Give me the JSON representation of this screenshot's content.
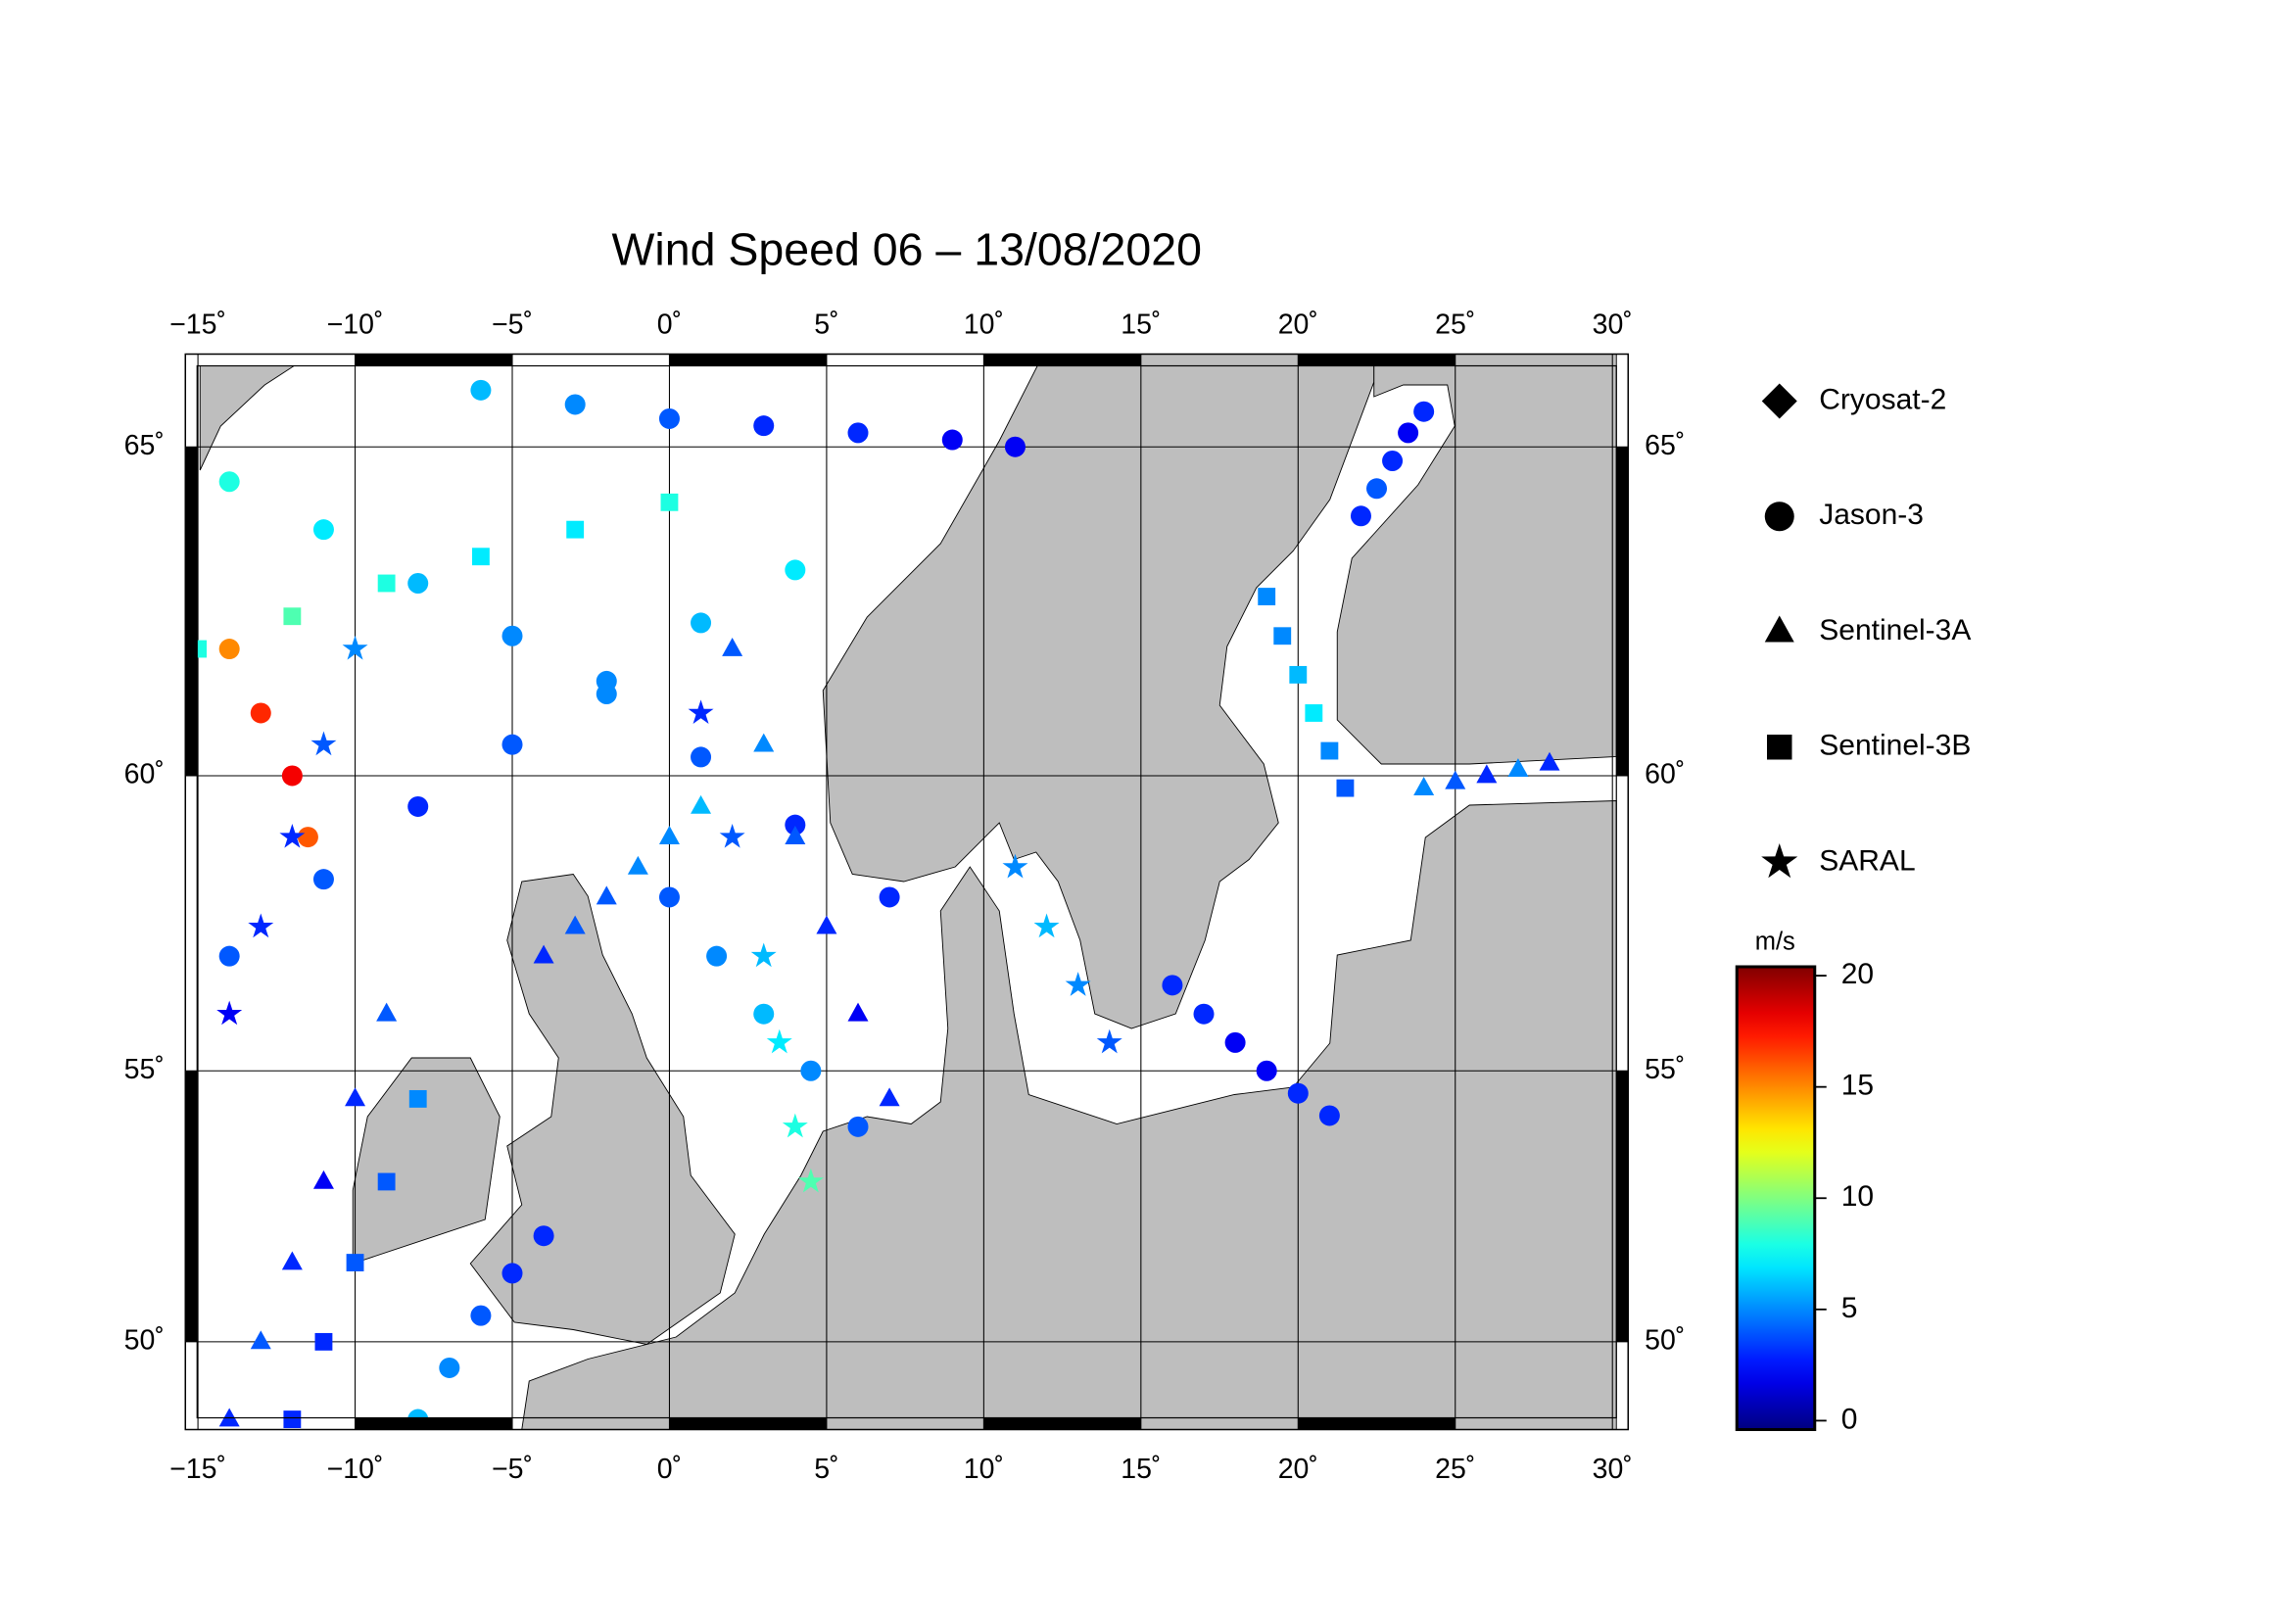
{
  "chart_data": {
    "type": "map",
    "title": "Wind Speed 06 – 13/08/2020",
    "projection": "conic",
    "xlim": [
      -15.4,
      30.5
    ],
    "ylim": [
      48.3,
      66.3
    ],
    "xticks": [
      {
        "value": -15,
        "label": "−15˚"
      },
      {
        "value": -10,
        "label": "−10˚"
      },
      {
        "value": -5,
        "label": "−5˚"
      },
      {
        "value": 0,
        "label": "0˚"
      },
      {
        "value": 5,
        "label": "5˚"
      },
      {
        "value": 10,
        "label": "10˚"
      },
      {
        "value": 15,
        "label": "15˚"
      },
      {
        "value": 20,
        "label": "20˚"
      },
      {
        "value": 25,
        "label": "25˚"
      },
      {
        "value": 30,
        "label": "30˚"
      }
    ],
    "yticks": [
      {
        "value": 50,
        "label": "50˚"
      },
      {
        "value": 55,
        "label": "55˚"
      },
      {
        "value": 60,
        "label": "60˚"
      },
      {
        "value": 65,
        "label": "65˚"
      }
    ],
    "grid": true,
    "land_color": "#bebebe",
    "colorbar": {
      "label": "m/s",
      "colormap": "jet",
      "clim": [
        -0.4,
        20.4
      ],
      "ticks": [
        0,
        5,
        10,
        15,
        20
      ]
    },
    "legend_position": "right",
    "series": [
      {
        "name": "Cryosat-2",
        "marker": "diamond",
        "tracks": []
      },
      {
        "name": "Jason-3",
        "marker": "circle",
        "tracks": [
          {
            "lon": [
              -14,
              -11,
              -8,
              -5,
              -2,
              1,
              4
            ],
            "lat": [
              57,
              58.3,
              59.5,
              60.5,
              61.5,
              62.4,
              63.2
            ],
            "values": [
              4,
              4,
              3,
              4,
              5,
              6,
              7
            ]
          },
          {
            "lon": [
              -14,
              -11,
              -8,
              -5,
              -2,
              1,
              4,
              7
            ],
            "lat": [
              64.5,
              63.8,
              63,
              62.2,
              61.3,
              60.3,
              59.2,
              58
            ],
            "values": [
              8,
              7,
              6,
              5,
              5,
              4,
              3,
              3
            ]
          },
          {
            "lon": [
              0,
              1.5,
              3,
              4.5,
              6
            ],
            "lat": [
              58,
              57,
              56,
              55,
              54
            ],
            "values": [
              4,
              5,
              6,
              5,
              4
            ]
          },
          {
            "lon": [
              16,
              17,
              18,
              19,
              20,
              21
            ],
            "lat": [
              56.5,
              56,
              55.5,
              55,
              54.6,
              54.2
            ],
            "values": [
              3,
              3,
              2,
              2,
              3,
              3
            ]
          },
          {
            "lon": [
              22,
              22.5,
              23,
              23.5,
              24
            ],
            "lat": [
              64,
              64.4,
              64.8,
              65.2,
              65.5
            ],
            "values": [
              3,
              4,
              3,
              2,
              3
            ]
          },
          {
            "lon": [
              -14,
              -13,
              -12,
              -11.5
            ],
            "lat": [
              62,
              61,
              60,
              59
            ],
            "values": [
              15,
              17,
              18,
              16
            ]
          },
          {
            "lon": [
              -8,
              -7,
              -6,
              -5,
              -4
            ],
            "lat": [
              48.5,
              49.5,
              50.5,
              51.3,
              52
            ],
            "values": [
              6,
              5,
              4,
              3,
              3
            ]
          },
          {
            "lon": [
              -6,
              -3,
              0,
              3,
              6,
              9,
              11
            ],
            "lat": [
              65.8,
              65.6,
              65.4,
              65.3,
              65.2,
              65.1,
              65
            ],
            "values": [
              6,
              5,
              4,
              3,
              3,
              2,
              2
            ]
          }
        ]
      },
      {
        "name": "Sentinel-3A",
        "marker": "triangle",
        "tracks": [
          {
            "lon": [
              -14,
              -13,
              -12,
              -11,
              -10,
              -9
            ],
            "lat": [
              48.5,
              50,
              51.5,
              53,
              54.5,
              56
            ],
            "values": [
              3,
              4,
              3,
              2,
              3,
              4
            ]
          },
          {
            "lon": [
              2,
              3,
              4,
              5,
              6,
              7
            ],
            "lat": [
              62,
              60.5,
              59,
              57.5,
              56,
              54.5
            ],
            "values": [
              4,
              5,
              4,
              3,
              2,
              3
            ]
          },
          {
            "lon": [
              24,
              25,
              26,
              27,
              28
            ],
            "lat": [
              59.8,
              59.9,
              60,
              60.1,
              60.2
            ],
            "values": [
              5,
              4,
              3,
              5,
              3
            ]
          },
          {
            "lon": [
              -4,
              -3,
              -2,
              -1,
              0,
              1
            ],
            "lat": [
              57,
              57.5,
              58,
              58.5,
              59,
              59.5
            ],
            "values": [
              3,
              4,
              4,
              5,
              5,
              6
            ]
          }
        ]
      },
      {
        "name": "Sentinel-3B",
        "marker": "square",
        "tracks": [
          {
            "lon": [
              -15,
              -12,
              -9,
              -6,
              -3,
              0
            ],
            "lat": [
              62,
              62.5,
              63,
              63.4,
              63.8,
              64.2
            ],
            "values": [
              8,
              9,
              8,
              7,
              7,
              8
            ]
          },
          {
            "lon": [
              19,
              19.5,
              20,
              20.5,
              21,
              21.5
            ],
            "lat": [
              62.8,
              62.2,
              61.6,
              61,
              60.4,
              59.8
            ],
            "values": [
              5,
              5,
              6,
              7,
              5,
              4
            ]
          },
          {
            "lon": [
              -12,
              -11,
              -10,
              -9,
              -8
            ],
            "lat": [
              48.5,
              50,
              51.5,
              53,
              54.5
            ],
            "values": [
              3,
              3,
              4,
              4,
              5
            ]
          }
        ]
      },
      {
        "name": "SARAL",
        "marker": "star",
        "tracks": [
          {
            "lon": [
              1,
              2,
              3,
              3.5,
              4,
              4.5
            ],
            "lat": [
              61,
              59,
              57,
              55.5,
              54,
              53
            ],
            "values": [
              3,
              4,
              6,
              7,
              8,
              9
            ]
          },
          {
            "lon": [
              -14,
              -13,
              -12,
              -11,
              -10
            ],
            "lat": [
              56,
              57.5,
              59,
              60.5,
              62
            ],
            "values": [
              2,
              3,
              3,
              4,
              5
            ]
          },
          {
            "lon": [
              11,
              12,
              13,
              14
            ],
            "lat": [
              58.5,
              57.5,
              56.5,
              55.5
            ],
            "values": [
              5,
              6,
              5,
              4
            ]
          }
        ]
      }
    ]
  }
}
